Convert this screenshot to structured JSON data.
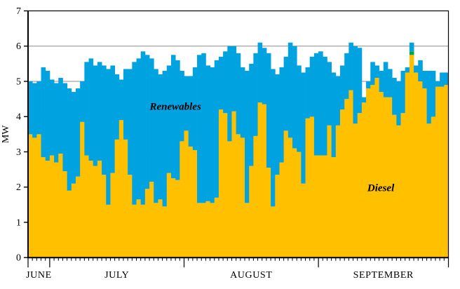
{
  "figure": {
    "y_axis_label": "MW",
    "y_ticks": [
      "0",
      "1",
      "2",
      "3",
      "4",
      "5",
      "6",
      "7"
    ],
    "x_month_labels": [
      "JUNE",
      "JULY",
      "AUGUST",
      "SEPTEMBER"
    ]
  },
  "colors": {
    "diesel": "#FFC000",
    "renewables": "#00A3E0",
    "green_sliver": "#00A651",
    "gridline": "#8C8C8C",
    "axis": "#000000",
    "background": "#FFFFFF"
  },
  "chart_data": {
    "type": "bar",
    "stacked": true,
    "title": "",
    "xlabel": "",
    "ylabel": "MW",
    "ylim": [
      0,
      7
    ],
    "grid": true,
    "gridline_interval": 1,
    "legend_position": "inline-labels",
    "x_unit": "day",
    "total_days": 97,
    "months": [
      {
        "label": "JUNE",
        "days": 5
      },
      {
        "label": "JULY",
        "days": 31
      },
      {
        "label": "AUGUST",
        "days": 31
      },
      {
        "label": "SEPTEMBER",
        "days": 30
      }
    ],
    "series": [
      {
        "name": "Diesel",
        "color": "#FFC000",
        "values": [
          3.5,
          3.4,
          3.5,
          2.85,
          2.75,
          2.9,
          2.7,
          2.95,
          2.45,
          1.9,
          2.1,
          2.3,
          3.85,
          2.9,
          2.75,
          2.6,
          2.75,
          2.35,
          1.5,
          2.4,
          3.35,
          3.9,
          3.35,
          2.35,
          1.5,
          1.65,
          1.5,
          1.95,
          2.15,
          1.55,
          1.65,
          1.45,
          2.4,
          2.25,
          2.2,
          3.3,
          3.6,
          3.15,
          3.05,
          1.55,
          1.55,
          1.6,
          1.55,
          1.7,
          4.2,
          4.1,
          3.3,
          4.15,
          3.5,
          3.4,
          1.55,
          2.6,
          3.45,
          4.4,
          4.35,
          2.55,
          1.45,
          2.35,
          2.7,
          3.6,
          3.4,
          3.1,
          3.0,
          2.1,
          3.95,
          4.0,
          2.9,
          2.9,
          2.9,
          3.75,
          2.85,
          3.75,
          4.2,
          4.5,
          4.75,
          3.8,
          4.1,
          4.4,
          4.8,
          4.9,
          5.1,
          4.7,
          4.55,
          4.55,
          4.05,
          3.75,
          4.1,
          5.25,
          5.75,
          5.25,
          5.0,
          4.8,
          3.8,
          4.0,
          4.85,
          4.85,
          4.9
        ]
      },
      {
        "name": "GreenUnlabeled",
        "color": "#00A651",
        "values": [
          0,
          0,
          0,
          0,
          0,
          0,
          0,
          0,
          0,
          0,
          0,
          0,
          0,
          0,
          0,
          0,
          0,
          0,
          0,
          0,
          0,
          0,
          0,
          0,
          0,
          0,
          0,
          0,
          0,
          0,
          0,
          0,
          0,
          0,
          0,
          0,
          0,
          0,
          0,
          0,
          0,
          0,
          0,
          0,
          0,
          0,
          0,
          0,
          0,
          0,
          0,
          0,
          0,
          0,
          0,
          0,
          0,
          0,
          0,
          0,
          0,
          0,
          0,
          0,
          0,
          0,
          0,
          0,
          0,
          0,
          0,
          0,
          0,
          0,
          0,
          0,
          0,
          0,
          0,
          0,
          0,
          0,
          0,
          0,
          0,
          0,
          0,
          0,
          0.1,
          0,
          0,
          0,
          0,
          0,
          0,
          0,
          0
        ]
      },
      {
        "name": "Renewables",
        "color": "#00A3E0",
        "values": [
          1.5,
          1.55,
          1.5,
          2.55,
          2.55,
          2.15,
          2.25,
          2.15,
          2.5,
          2.9,
          2.6,
          2.5,
          1.15,
          2.65,
          2.9,
          2.85,
          2.8,
          3.1,
          3.85,
          3.05,
          1.85,
          1.15,
          2.0,
          3.0,
          4.05,
          4.0,
          4.35,
          3.8,
          3.5,
          3.8,
          3.55,
          3.85,
          3.05,
          3.5,
          3.4,
          2.0,
          1.55,
          2.0,
          2.35,
          4.2,
          4.25,
          3.85,
          3.85,
          3.9,
          1.5,
          1.75,
          2.7,
          1.85,
          2.3,
          2.0,
          3.75,
          2.9,
          2.35,
          1.7,
          1.6,
          3.25,
          3.9,
          2.85,
          2.7,
          2.1,
          2.7,
          2.9,
          2.45,
          3.15,
          1.45,
          1.7,
          2.9,
          2.95,
          2.8,
          1.8,
          2.4,
          1.4,
          1.25,
          1.3,
          1.35,
          2.2,
          1.85,
          0.15,
          0.2,
          0.65,
          0.35,
          0.6,
          1.0,
          0.8,
          1.05,
          1.25,
          1.2,
          0.15,
          0.25,
          0.2,
          0.6,
          0.5,
          1.5,
          1.3,
          0.15,
          0.4,
          0.35
        ]
      }
    ],
    "annotations": [
      {
        "text": "Renewables",
        "day": 34,
        "mw": 4.27
      },
      {
        "text": "Diesel",
        "day": 81.4,
        "mw": 1.95
      }
    ]
  }
}
